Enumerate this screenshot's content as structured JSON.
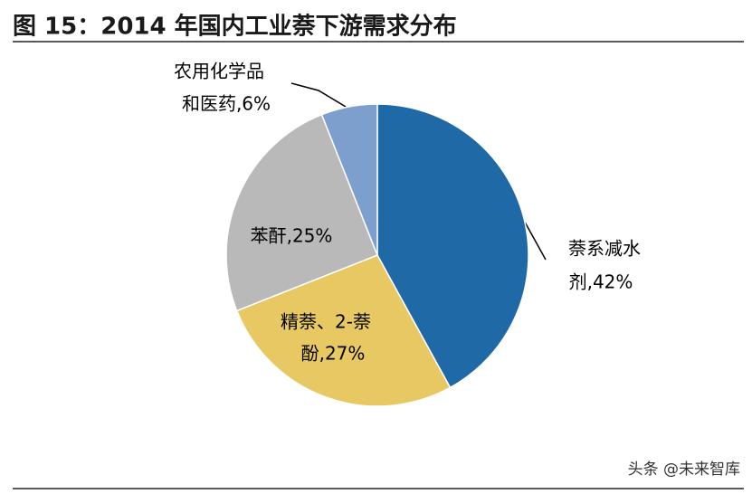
{
  "chart_data": {
    "type": "pie",
    "title": "图 15：2014 年国内工业萘下游需求分布",
    "values": [
      42,
      27,
      25,
      6
    ],
    "value_labels": [
      [
        "萘系减水",
        "剂,42%"
      ],
      [
        "精萘、2-萘",
        "酚,27%"
      ],
      [
        "苯酐,25%"
      ],
      [
        "农用化学品",
        "和医药,6%"
      ]
    ],
    "colors": [
      "#1f69a6",
      "#e7c862",
      "#b9b9b9",
      "#7c9fce"
    ],
    "watermark": "头条 @未来智库"
  }
}
